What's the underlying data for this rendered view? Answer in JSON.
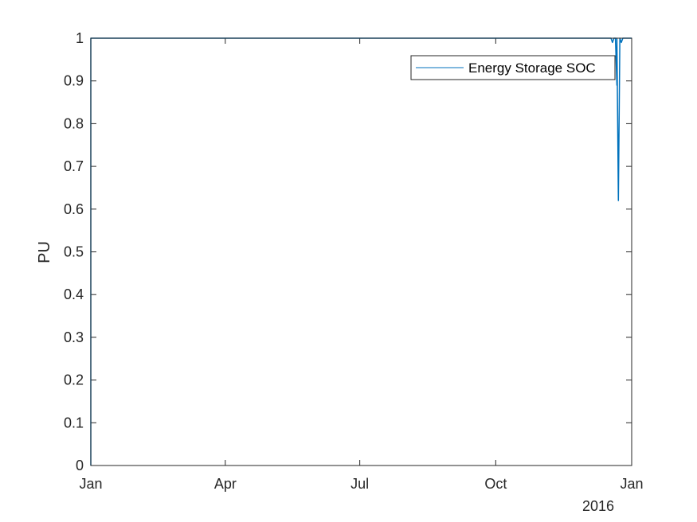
{
  "chart_data": {
    "type": "line",
    "title": "",
    "xlabel": "",
    "ylabel": "PU",
    "year_label": "2016",
    "xlim": [
      "2016-01-01",
      "2017-01-01"
    ],
    "ylim": [
      0,
      1
    ],
    "x_ticks": [
      {
        "date": "2016-01-01",
        "label": "Jan"
      },
      {
        "date": "2016-04-01",
        "label": "Apr"
      },
      {
        "date": "2016-07-01",
        "label": "Jul"
      },
      {
        "date": "2016-10-01",
        "label": "Oct"
      },
      {
        "date": "2017-01-01",
        "label": "Jan"
      }
    ],
    "y_ticks": [
      0,
      0.1,
      0.2,
      0.3,
      0.4,
      0.5,
      0.6,
      0.7,
      0.8,
      0.9,
      1
    ],
    "y_tick_labels": [
      "0",
      "0.1",
      "0.2",
      "0.3",
      "0.4",
      "0.5",
      "0.6",
      "0.7",
      "0.8",
      "0.9",
      "1"
    ],
    "grid": false,
    "legend": {
      "position": "top-right",
      "entries": [
        "Energy Storage SOC"
      ]
    },
    "series": [
      {
        "name": "Energy Storage SOC",
        "color": "#0072BD",
        "x": [
          "2016-01-01",
          "2016-01-01",
          "2016-12-18",
          "2016-12-19",
          "2016-12-20",
          "2016-12-21",
          "2016-12-22",
          "2016-12-22",
          "2016-12-23",
          "2016-12-24",
          "2016-12-25",
          "2016-12-26",
          "2017-01-01"
        ],
        "y": [
          0,
          1,
          1,
          0.99,
          1,
          1,
          0.89,
          1,
          0.62,
          1,
          0.99,
          1,
          1
        ]
      }
    ]
  }
}
